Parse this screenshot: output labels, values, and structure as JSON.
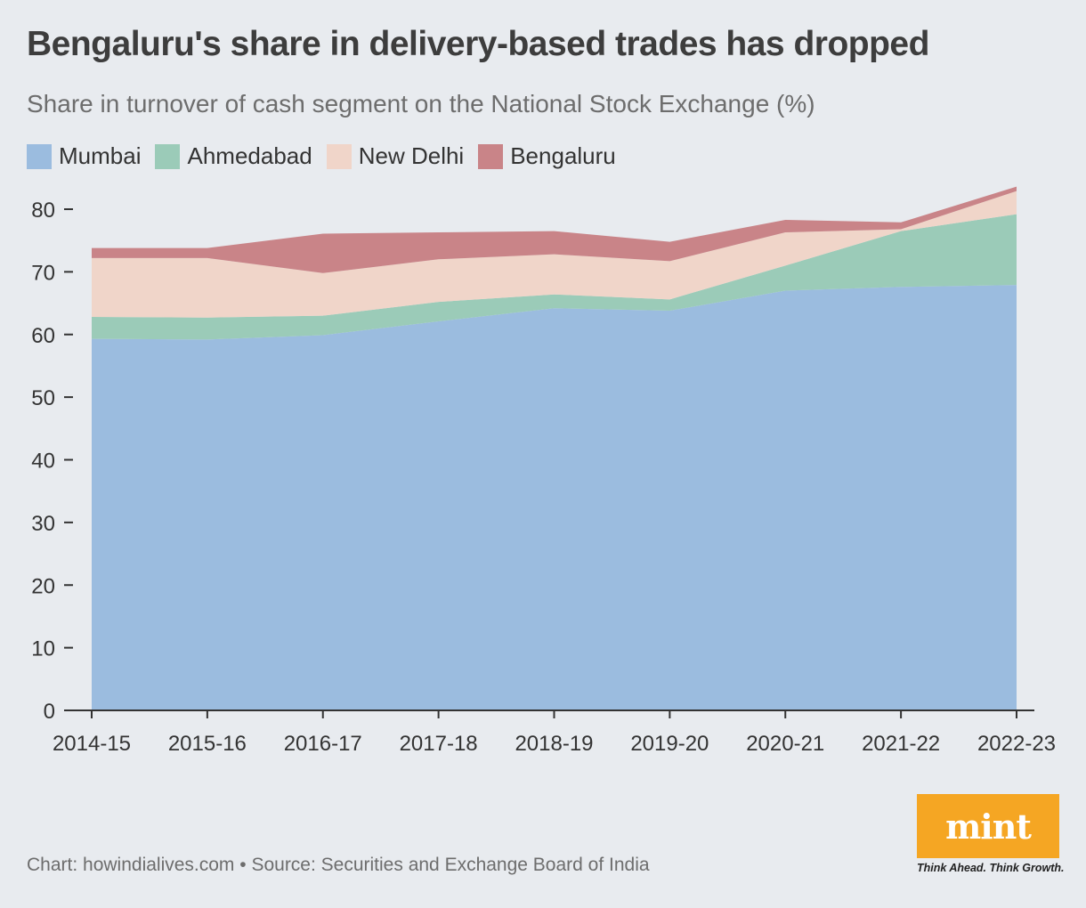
{
  "title": "Bengaluru's share in delivery-based trades has dropped",
  "subtitle": "Share in turnover of cash segment on the National Stock Exchange (%)",
  "footer": "Chart: howindialives.com • Source: Securities and Exchange Board of India",
  "logo": {
    "text": "mint",
    "tagline": "Think Ahead. Think Growth."
  },
  "chart_data": {
    "type": "area",
    "stacked": true,
    "title": "Bengaluru's share in delivery-based trades has dropped",
    "subtitle": "Share in turnover of cash segment on the National Stock Exchange (%)",
    "xlabel": "",
    "ylabel": "",
    "ylim": [
      0,
      80
    ],
    "yticks": [
      0,
      10,
      20,
      30,
      40,
      50,
      60,
      70,
      80
    ],
    "grid": false,
    "legend_position": "top-left",
    "categories": [
      "2014-15",
      "2015-16",
      "2016-17",
      "2017-18",
      "2018-19",
      "2019-20",
      "2020-21",
      "2021-22",
      "2022-23"
    ],
    "series": [
      {
        "name": "Mumbai",
        "color": "#9bbcdf",
        "values": [
          59.3,
          59.2,
          59.9,
          62.1,
          64.2,
          63.8,
          67.0,
          67.6,
          67.9
        ]
      },
      {
        "name": "Ahmedabad",
        "color": "#9bcbb8",
        "values": [
          3.5,
          3.5,
          3.1,
          3.1,
          2.2,
          1.8,
          4.0,
          8.9,
          11.3
        ]
      },
      {
        "name": "New Delhi",
        "color": "#f0d5c9",
        "values": [
          9.4,
          9.5,
          6.8,
          6.8,
          6.4,
          6.1,
          5.3,
          0.3,
          3.7
        ]
      },
      {
        "name": "Bengaluru",
        "color": "#c98488",
        "values": [
          1.6,
          1.6,
          6.3,
          4.3,
          3.7,
          3.1,
          2.0,
          1.1,
          0.7
        ]
      }
    ]
  }
}
